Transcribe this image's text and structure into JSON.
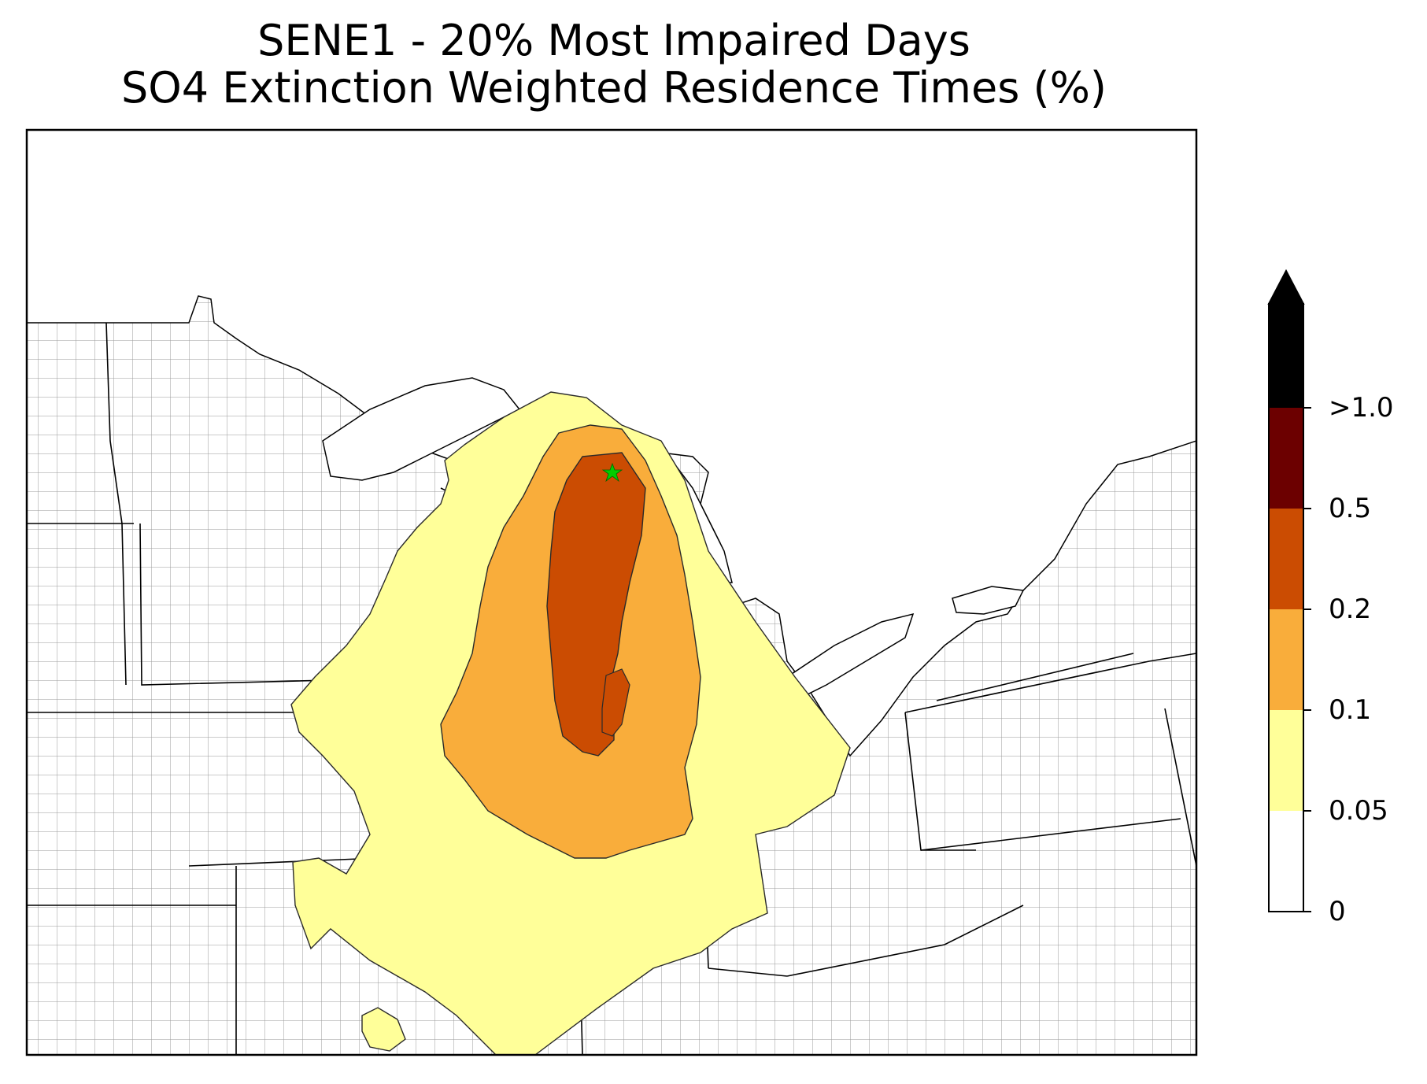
{
  "title": {
    "line1": "SENE1 - 20% Most Impaired Days",
    "line2": "SO4 Extinction Weighted Residence Times (%)"
  },
  "colorbar": {
    "levels": [
      {
        "label": "0",
        "value": 0
      },
      {
        "label": "0.05",
        "value": 0.05
      },
      {
        "label": "0.1",
        "value": 0.1
      },
      {
        "label": "0.2",
        "value": 0.2
      },
      {
        "label": "0.5",
        "value": 0.5
      },
      {
        "label": ">1.0",
        "value": 1.0
      }
    ],
    "colors": [
      "#ffffff",
      "#ffff99",
      "#f9ad3b",
      "#cb4c02",
      "#6c0000",
      "#000000"
    ],
    "extend": "max"
  },
  "site_marker": {
    "color": "#00cc00",
    "shape": "star"
  },
  "colors": {
    "county_lines": "#9a9a9a",
    "state_lines": "#000000",
    "contour_edge": "#2a2a2a"
  }
}
